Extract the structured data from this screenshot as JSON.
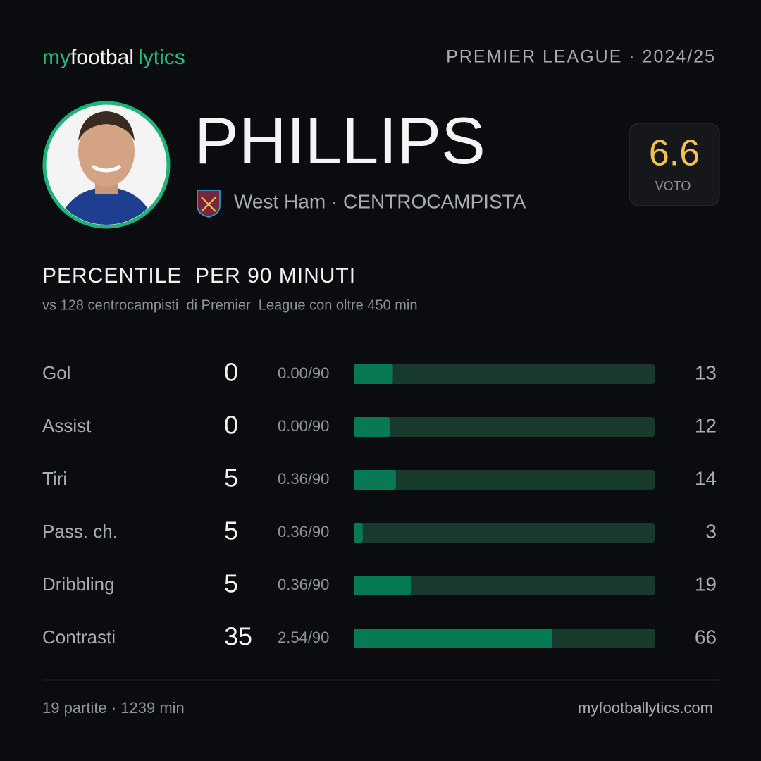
{
  "brand": {
    "parts": [
      "my",
      "footbal",
      "lytics"
    ]
  },
  "league": "PREMIER LEAGUE · 2024/25",
  "player": {
    "name": "PHILLIPS",
    "team": "West Ham · CENTROCAMPISTA"
  },
  "rating": {
    "value": 6.6,
    "label": "VOTO"
  },
  "section": {
    "title": "PERCENTILE  PER 90 MINUTI",
    "subtitle": "vs 128 centrocampisti  di Premier  League con oltre 450 min"
  },
  "stats": {
    "xlim": [
      0,
      100
    ],
    "track_color": "#183a2d",
    "bar_color": "#077a55",
    "rows": [
      {
        "label": "Gol",
        "total": 0,
        "per90": "0.00/90",
        "percentile": 13
      },
      {
        "label": "Assist",
        "total": 0,
        "per90": "0.00/90",
        "percentile": 12
      },
      {
        "label": "Tiri",
        "total": 5,
        "per90": "0.36/90",
        "percentile": 14
      },
      {
        "label": "Pass. ch.",
        "total": 5,
        "per90": "0.36/90",
        "percentile": 3
      },
      {
        "label": "Dribbling",
        "total": 5,
        "per90": "0.36/90",
        "percentile": 19
      },
      {
        "label": "Contrasti",
        "total": 35,
        "per90": "2.54/90",
        "percentile": 66
      }
    ]
  },
  "footer": {
    "left": "19 partite · 1239 min",
    "right": "myfootballytics.com"
  }
}
